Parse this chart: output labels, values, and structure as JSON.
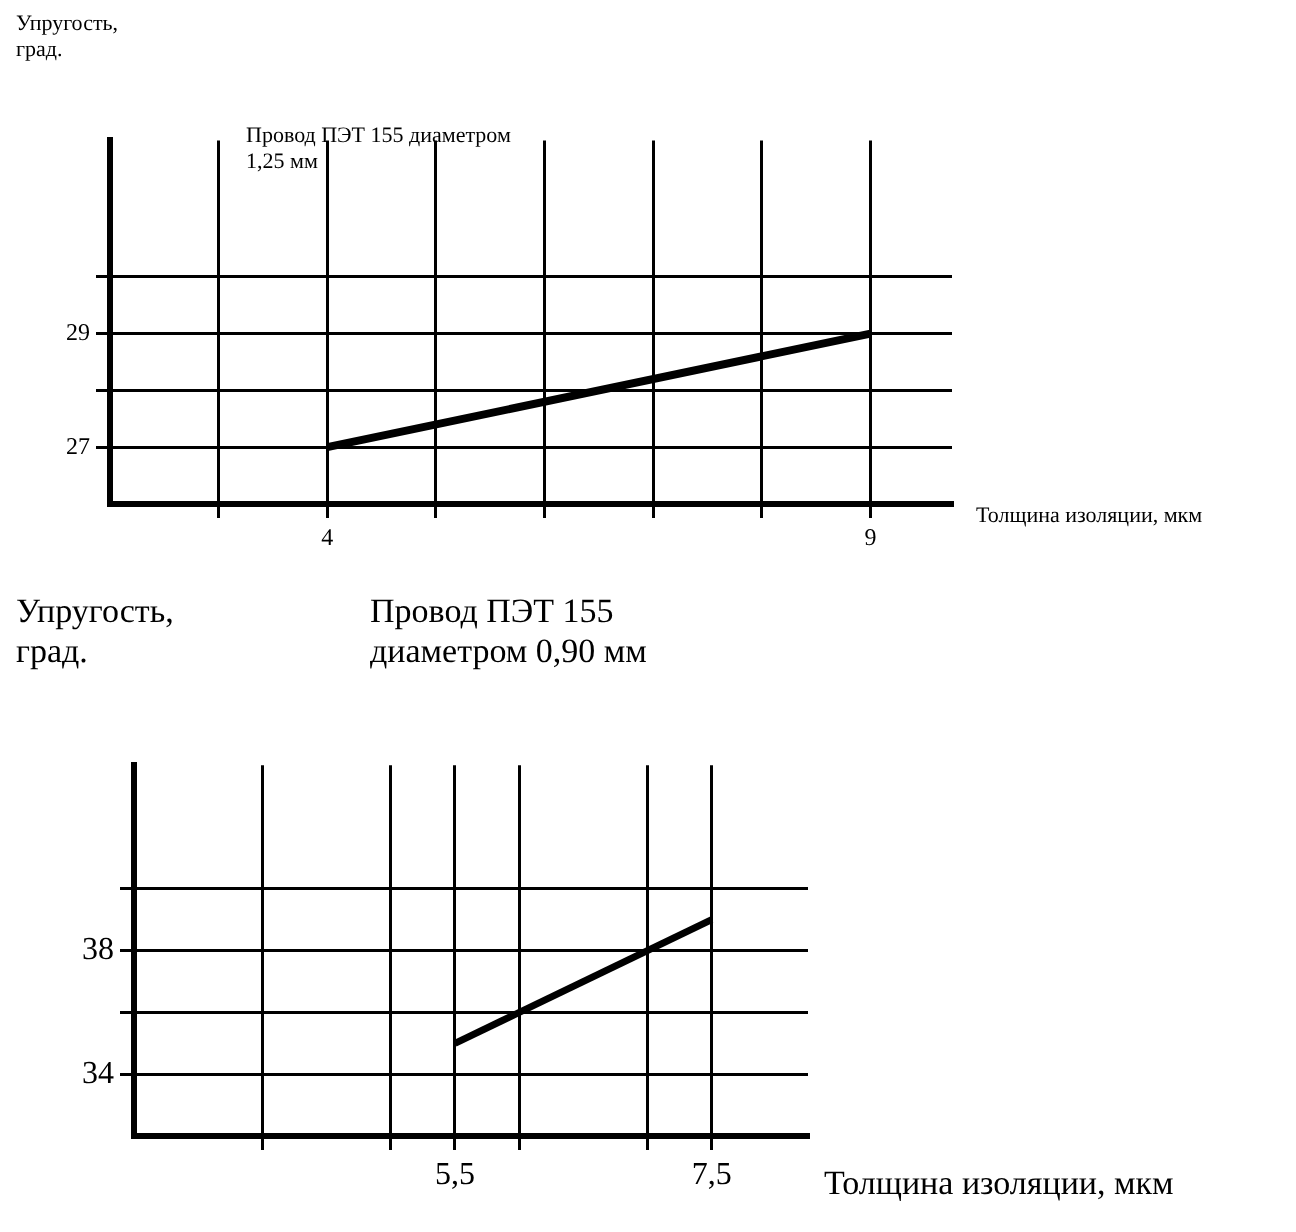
{
  "chart_data": [
    {
      "type": "line",
      "title": "Провод ПЭТ 155 диаметром 1,25 мм",
      "xlabel": "Толщина изоляции, мкм",
      "ylabel": "Упругость, град.",
      "xlim": [
        2,
        9.75
      ],
      "ylim": [
        26,
        32.4
      ],
      "xticks": [
        {
          "value": 3,
          "label": null
        },
        4,
        {
          "value": 5,
          "label": null
        },
        {
          "value": 6,
          "label": null
        },
        {
          "value": 7,
          "label": null
        },
        {
          "value": 8,
          "label": null
        },
        9
      ],
      "yticks": [
        27,
        {
          "value": 28,
          "label": null
        },
        29,
        {
          "value": 30,
          "label": null
        }
      ],
      "grid": true,
      "marker": "none",
      "line_style": "solid",
      "series": [
        {
          "color": "#000000",
          "x": [
            4,
            9
          ],
          "values": [
            27,
            29
          ]
        }
      ]
    },
    {
      "type": "line",
      "title": "Провод ПЭТ 155 диаметром 0,90 мм",
      "xlabel": "Толщина изоляции, мкм",
      "ylabel": "Упругость, град.",
      "xlim": [
        3,
        8.25
      ],
      "ylim": [
        32,
        44
      ],
      "xticks": [
        {
          "value": 4,
          "label": null
        },
        {
          "value": 5,
          "label": null
        },
        {
          "value": 5.5,
          "label": "5,5"
        },
        {
          "value": 6,
          "label": null
        },
        {
          "value": 7,
          "label": null
        },
        {
          "value": 7.5,
          "label": "7,5"
        }
      ],
      "yticks": [
        34,
        {
          "value": 36,
          "label": null
        },
        38,
        {
          "value": 40,
          "label": null
        }
      ],
      "grid": true,
      "marker": "none",
      "line_style": "solid",
      "series": [
        {
          "color": "#000000",
          "x": [
            5.5,
            7.5
          ],
          "values": [
            35,
            39
          ]
        }
      ]
    }
  ]
}
